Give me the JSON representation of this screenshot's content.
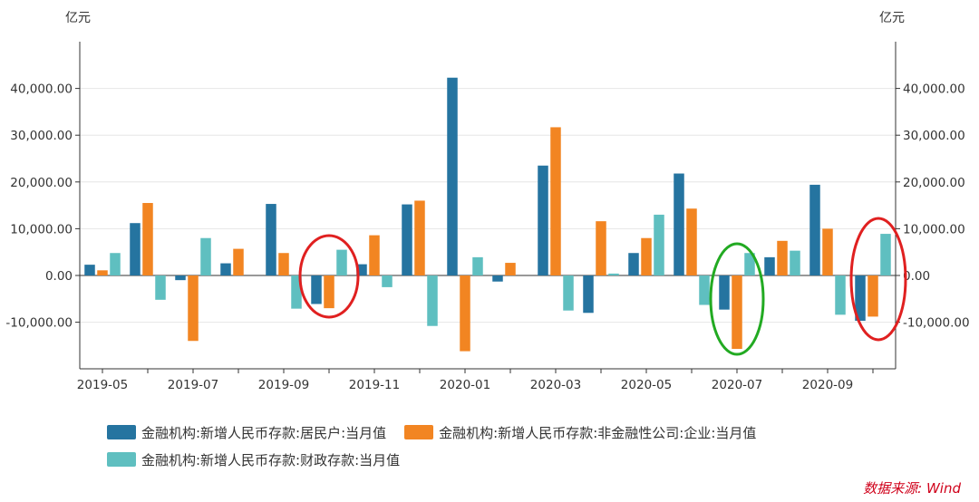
{
  "chart_data": {
    "type": "bar",
    "y_unit_left": "亿元",
    "y_unit_right": "亿元",
    "ylim": [
      -20000,
      50000
    ],
    "y_ticks": [
      40000,
      30000,
      20000,
      10000,
      0,
      -10000
    ],
    "y_tick_labels": [
      "40,000.00",
      "30,000.00",
      "20,000.00",
      "10,000.00",
      "0.00",
      "-10,000.00"
    ],
    "categories": [
      "2019-05",
      "2019-06",
      "2019-07",
      "2019-08",
      "2019-09",
      "2019-10",
      "2019-11",
      "2019-12",
      "2020-01",
      "2020-02",
      "2020-03",
      "2020-04",
      "2020-05",
      "2020-06",
      "2020-07",
      "2020-08",
      "2020-09",
      "2020-10"
    ],
    "x_tick_labels": [
      "2019-05",
      "2019-07",
      "2019-09",
      "2019-11",
      "2020-01",
      "2020-03",
      "2020-05",
      "2020-07",
      "2020-09"
    ],
    "series": [
      {
        "name": "金融机构:新增人民币存款:居民户:当月值",
        "color": "#2574a0",
        "values": [
          2300,
          11200,
          -1000,
          2600,
          15300,
          -6100,
          2400,
          15200,
          42300,
          -1300,
          23500,
          -8000,
          4800,
          21800,
          -7300,
          3900,
          19400,
          -9700
        ]
      },
      {
        "name": "金融机构:新增人民币存款:非金融性公司:企业:当月值",
        "color": "#f28522",
        "values": [
          1100,
          15500,
          -14000,
          5700,
          4800,
          -7000,
          8600,
          16000,
          -16200,
          2700,
          31700,
          11600,
          8000,
          14300,
          -15700,
          7400,
          10000,
          -8800
        ]
      },
      {
        "name": "金融机构:新增人民币存款:财政存款:当月值",
        "color": "#5fbfc0",
        "values": [
          4800,
          -5200,
          8000,
          0,
          -7100,
          5500,
          -2500,
          -10800,
          3900,
          0,
          -7500,
          400,
          13000,
          -6300,
          4800,
          5300,
          -8400,
          8900
        ]
      }
    ],
    "annotations": [
      {
        "shape": "ellipse",
        "color": "#e02020",
        "around": "2019-10"
      },
      {
        "shape": "ellipse",
        "color": "#22aa22",
        "around": "2020-07"
      },
      {
        "shape": "ellipse",
        "color": "#e02020",
        "around": "2020-10"
      }
    ]
  },
  "source_label": "数据来源: Wind"
}
